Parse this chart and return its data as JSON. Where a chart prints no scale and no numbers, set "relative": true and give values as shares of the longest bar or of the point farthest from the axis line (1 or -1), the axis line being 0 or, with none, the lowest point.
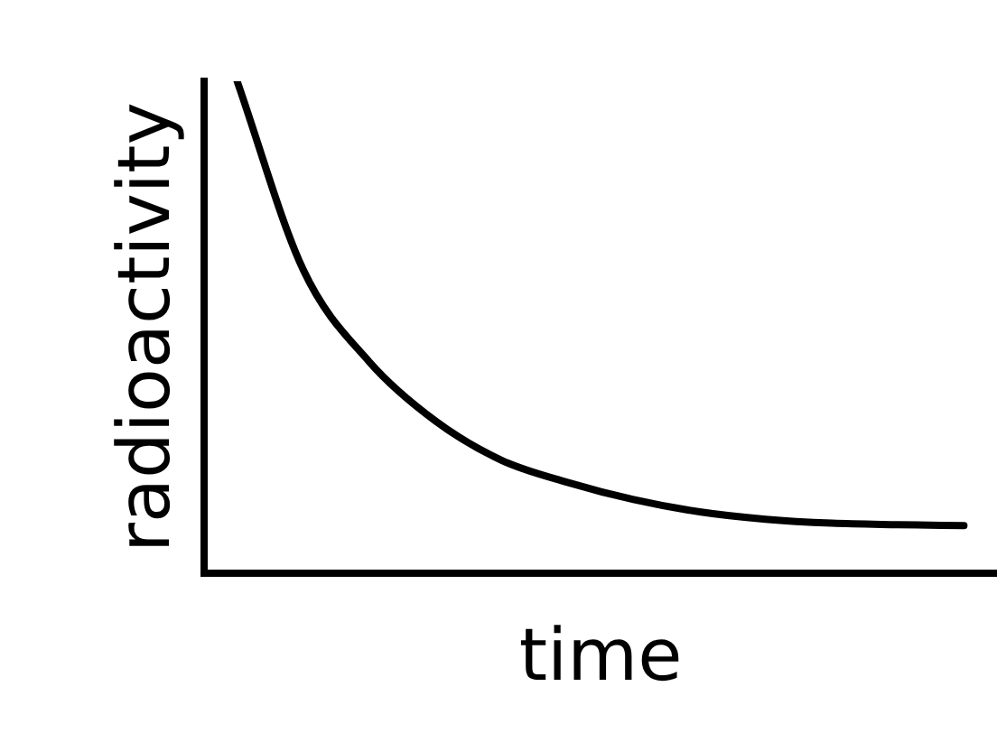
{
  "chart_data": {
    "type": "line",
    "relative": true,
    "xlabel": "time",
    "ylabel": "radioactivity",
    "categories": [
      null,
      null,
      null,
      null,
      null,
      null,
      null,
      null,
      null,
      null,
      null,
      null
    ],
    "series": [
      {
        "color": "#000000",
        "values": [
          1.0,
          0.617,
          0.43,
          0.31,
          0.23,
          0.185,
          0.15,
          0.125,
          0.11,
          0.102,
          0.099,
          0.097
        ]
      }
    ],
    "grid": false,
    "legend": false,
    "marker": "none",
    "line_style": "solid"
  }
}
